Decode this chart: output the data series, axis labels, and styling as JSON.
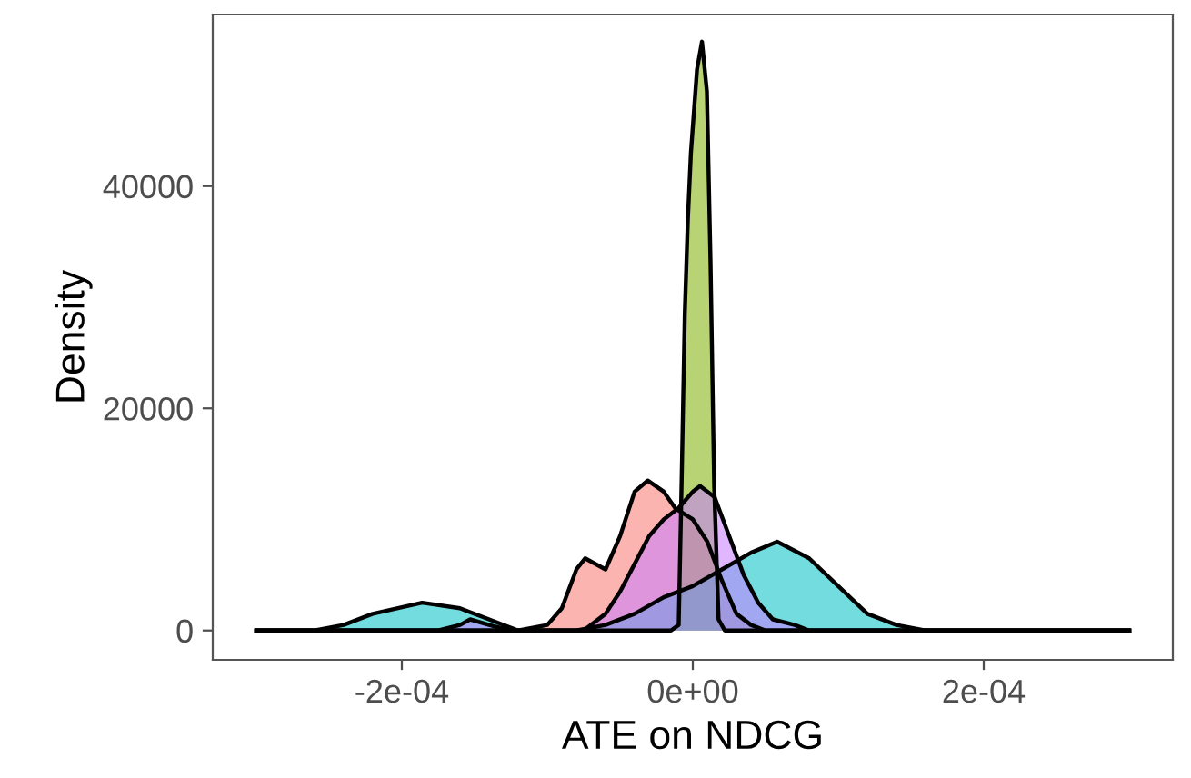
{
  "chart_data": {
    "type": "area",
    "xlabel": "ATE on NDCG",
    "ylabel": "Density",
    "xlim": [
      -0.00033,
      0.00033
    ],
    "ylim": [
      -2640,
      55440
    ],
    "xticks": [
      {
        "value": -0.0002,
        "label": "-2e-04"
      },
      {
        "value": 0,
        "label": "0e+00"
      },
      {
        "value": 0.0002,
        "label": "2e-04"
      }
    ],
    "yticks": [
      0,
      20000,
      40000
    ],
    "grid": false,
    "series": [
      {
        "color": "#f8766d",
        "x": [
          -0.0003,
          -0.00012,
          -0.0001,
          -9e-05,
          -8e-05,
          -7.4e-05,
          -6e-05,
          -5e-05,
          -4e-05,
          -3.1e-05,
          -2e-05,
          -1.2e-05,
          0,
          1e-05,
          2e-05,
          3e-05,
          4e-05,
          5e-05,
          0.0003
        ],
        "values": [
          0,
          0,
          500,
          2000,
          5500,
          6500,
          5500,
          8500,
          12500,
          13500,
          12500,
          11000,
          10000,
          8000,
          4500,
          1500,
          500,
          0,
          0
        ]
      },
      {
        "color": "#7cae00",
        "x": [
          -0.0003,
          -1.5e-05,
          -9.7e-06,
          -7.6e-06,
          -5.5e-06,
          -3.4e-06,
          -1.3e-06,
          2.9e-06,
          6.3e-06,
          9.7e-06,
          1.22e-05,
          1.47e-05,
          1.77e-05,
          2.2e-05,
          0.0003
        ],
        "values": [
          0,
          0,
          500,
          14000,
          28500,
          37000,
          43000,
          50500,
          53000,
          48500,
          33000,
          13000,
          1000,
          0,
          0
        ]
      },
      {
        "color": "#00bfc4",
        "x": [
          -0.0003,
          -0.00026,
          -0.00024,
          -0.00022,
          -0.000186,
          -0.00016,
          -0.00014,
          -0.00012,
          -0.0001,
          -8e-05,
          -6e-05,
          -4e-05,
          -2e-05,
          0,
          2e-05,
          4e-05,
          5.8e-05,
          8e-05,
          0.0001,
          0.00012,
          0.00014,
          0.00016,
          0.0002,
          0.0003
        ],
        "values": [
          0,
          0,
          500,
          1500,
          2500,
          2000,
          1000,
          0,
          0,
          0,
          500,
          1500,
          3000,
          4000,
          5500,
          7000,
          8000,
          6500,
          4000,
          1500,
          500,
          0,
          0,
          0
        ]
      },
      {
        "color": "#c77cff",
        "x": [
          -0.0003,
          -0.000175,
          -0.00016,
          -0.000153,
          -0.00014,
          -0.000125,
          -0.00011,
          -9e-05,
          -7.5e-05,
          -6e-05,
          -5e-05,
          -4e-05,
          -3e-05,
          -2e-05,
          -1e-05,
          0,
          5e-06,
          1.5e-05,
          2.5e-05,
          3.5e-05,
          4.5e-05,
          5.5e-05,
          7e-05,
          8e-05,
          0.0003
        ],
        "values": [
          0,
          0,
          500,
          1000,
          500,
          0,
          0,
          0,
          0,
          1500,
          3500,
          6000,
          8500,
          10000,
          11000,
          12500,
          13000,
          12000,
          8500,
          5000,
          2500,
          1000,
          500,
          0,
          0
        ]
      }
    ]
  }
}
